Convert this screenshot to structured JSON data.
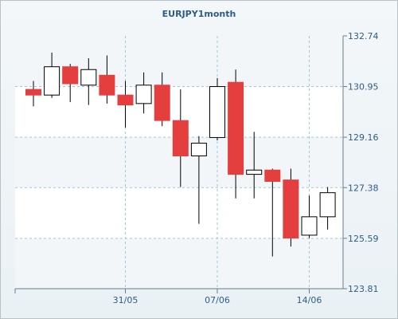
{
  "chart_data": {
    "type": "candlestick",
    "title": "EURJPY1month",
    "xlabel": "",
    "ylabel": "",
    "ylim": [
      123.81,
      132.74
    ],
    "y_ticks": [
      "123.81",
      "125.59",
      "127.38",
      "129.16",
      "130.95",
      "132.74"
    ],
    "x_ticks": [
      {
        "label": "31/05",
        "index": 5
      },
      {
        "label": "07/06",
        "index": 10
      },
      {
        "label": "14/06",
        "index": 15
      }
    ],
    "grid": true,
    "up_color": "#ffffff",
    "down_color": "#e53e3e",
    "candles": [
      {
        "open": 130.85,
        "high": 131.15,
        "low": 130.25,
        "close": 130.65
      },
      {
        "open": 130.65,
        "high": 132.15,
        "low": 130.55,
        "close": 131.65
      },
      {
        "open": 131.65,
        "high": 131.75,
        "low": 130.4,
        "close": 131.05
      },
      {
        "open": 131.0,
        "high": 131.95,
        "low": 130.3,
        "close": 131.55
      },
      {
        "open": 131.35,
        "high": 132.05,
        "low": 130.35,
        "close": 130.65
      },
      {
        "open": 130.65,
        "high": 131.15,
        "low": 129.5,
        "close": 130.3
      },
      {
        "open": 130.35,
        "high": 131.45,
        "low": 130.0,
        "close": 131.0
      },
      {
        "open": 131.0,
        "high": 131.45,
        "low": 129.55,
        "close": 129.75
      },
      {
        "open": 129.75,
        "high": 130.85,
        "low": 127.4,
        "close": 128.5
      },
      {
        "open": 128.5,
        "high": 129.2,
        "low": 126.1,
        "close": 128.95
      },
      {
        "open": 129.15,
        "high": 131.25,
        "low": 129.05,
        "close": 130.95
      },
      {
        "open": 131.1,
        "high": 131.55,
        "low": 127.0,
        "close": 127.85
      },
      {
        "open": 127.85,
        "high": 129.35,
        "low": 127.0,
        "close": 128.0
      },
      {
        "open": 128.0,
        "high": 128.05,
        "low": 124.95,
        "close": 127.6
      },
      {
        "open": 127.65,
        "high": 128.05,
        "low": 125.3,
        "close": 125.6
      },
      {
        "open": 125.7,
        "high": 127.1,
        "low": 125.6,
        "close": 126.35
      },
      {
        "open": 126.35,
        "high": 127.4,
        "low": 125.9,
        "close": 127.2
      }
    ]
  }
}
